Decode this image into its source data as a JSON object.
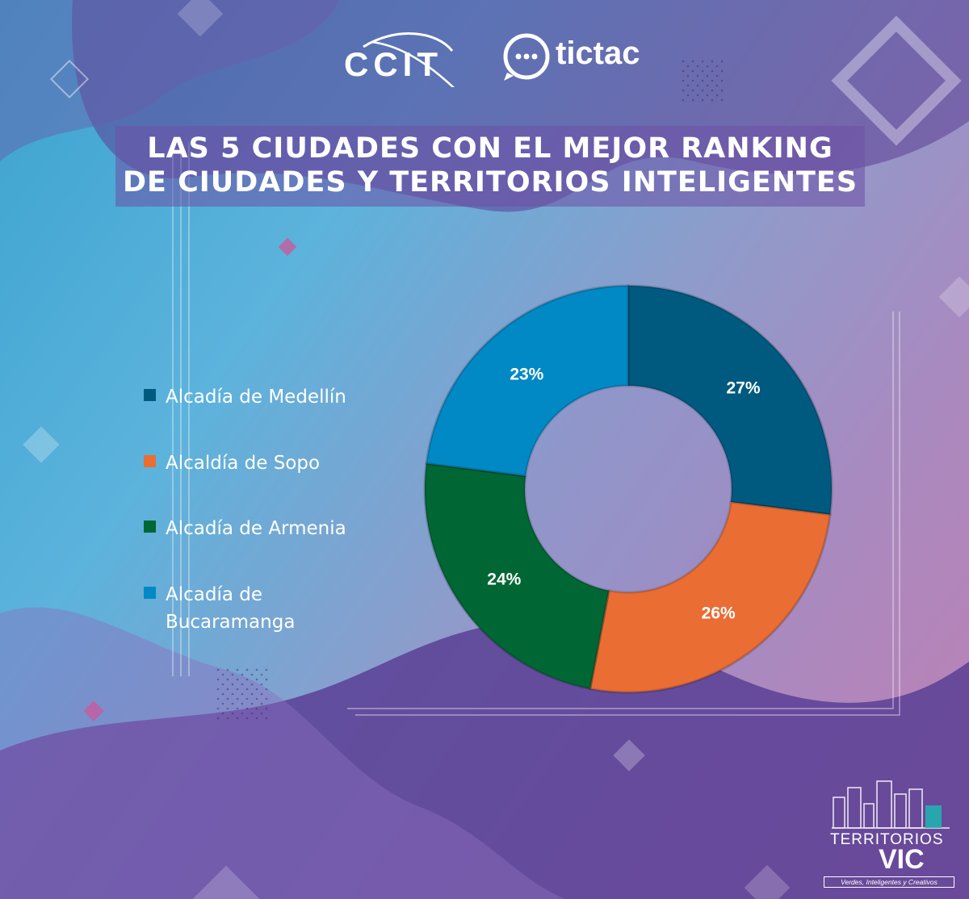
{
  "header": {
    "logo_left": "CCIT",
    "logo_right": "tictac"
  },
  "chart_data": {
    "type": "pie",
    "title": "LAS 5 CIUDADES CON EL MEJOR RANKING DE CIUDADES Y TERRITORIOS INTELIGENTES",
    "title_lines": [
      "LAS 5 CIUDADES CON EL MEJOR RANKING",
      "DE CIUDADES Y TERRITORIOS INTELIGENTES"
    ],
    "donut": true,
    "legend_position": "left",
    "categories": [
      "Alcadía de Medellín",
      "Alcaldía de Sopo",
      "Alcadía de Armenia",
      "Alcadía de Bucaramanga"
    ],
    "values": [
      27,
      26,
      24,
      23
    ],
    "labels": [
      "27%",
      "26%",
      "24%",
      "23%"
    ],
    "colors": [
      "#005a80",
      "#ea6d33",
      "#006734",
      "#0089c4"
    ]
  },
  "legend": {
    "items": [
      {
        "label": "Alcadía de Medellín"
      },
      {
        "label": "Alcaldía de Sopo"
      },
      {
        "label": "Alcadía de Armenia"
      },
      {
        "label_line1": "Alcadía de",
        "label_line2": "Bucaramanga"
      }
    ]
  },
  "footer": {
    "brand_line1": "TERRITORIOS",
    "brand_line2": "VIC",
    "brand_tagline": "Verdes, Inteligentes y Creativos"
  },
  "theme": {
    "background_start": "#3aa3cf",
    "background_end": "#c07fb2",
    "title_box": "#6e50a5",
    "text": "#ffffff"
  }
}
